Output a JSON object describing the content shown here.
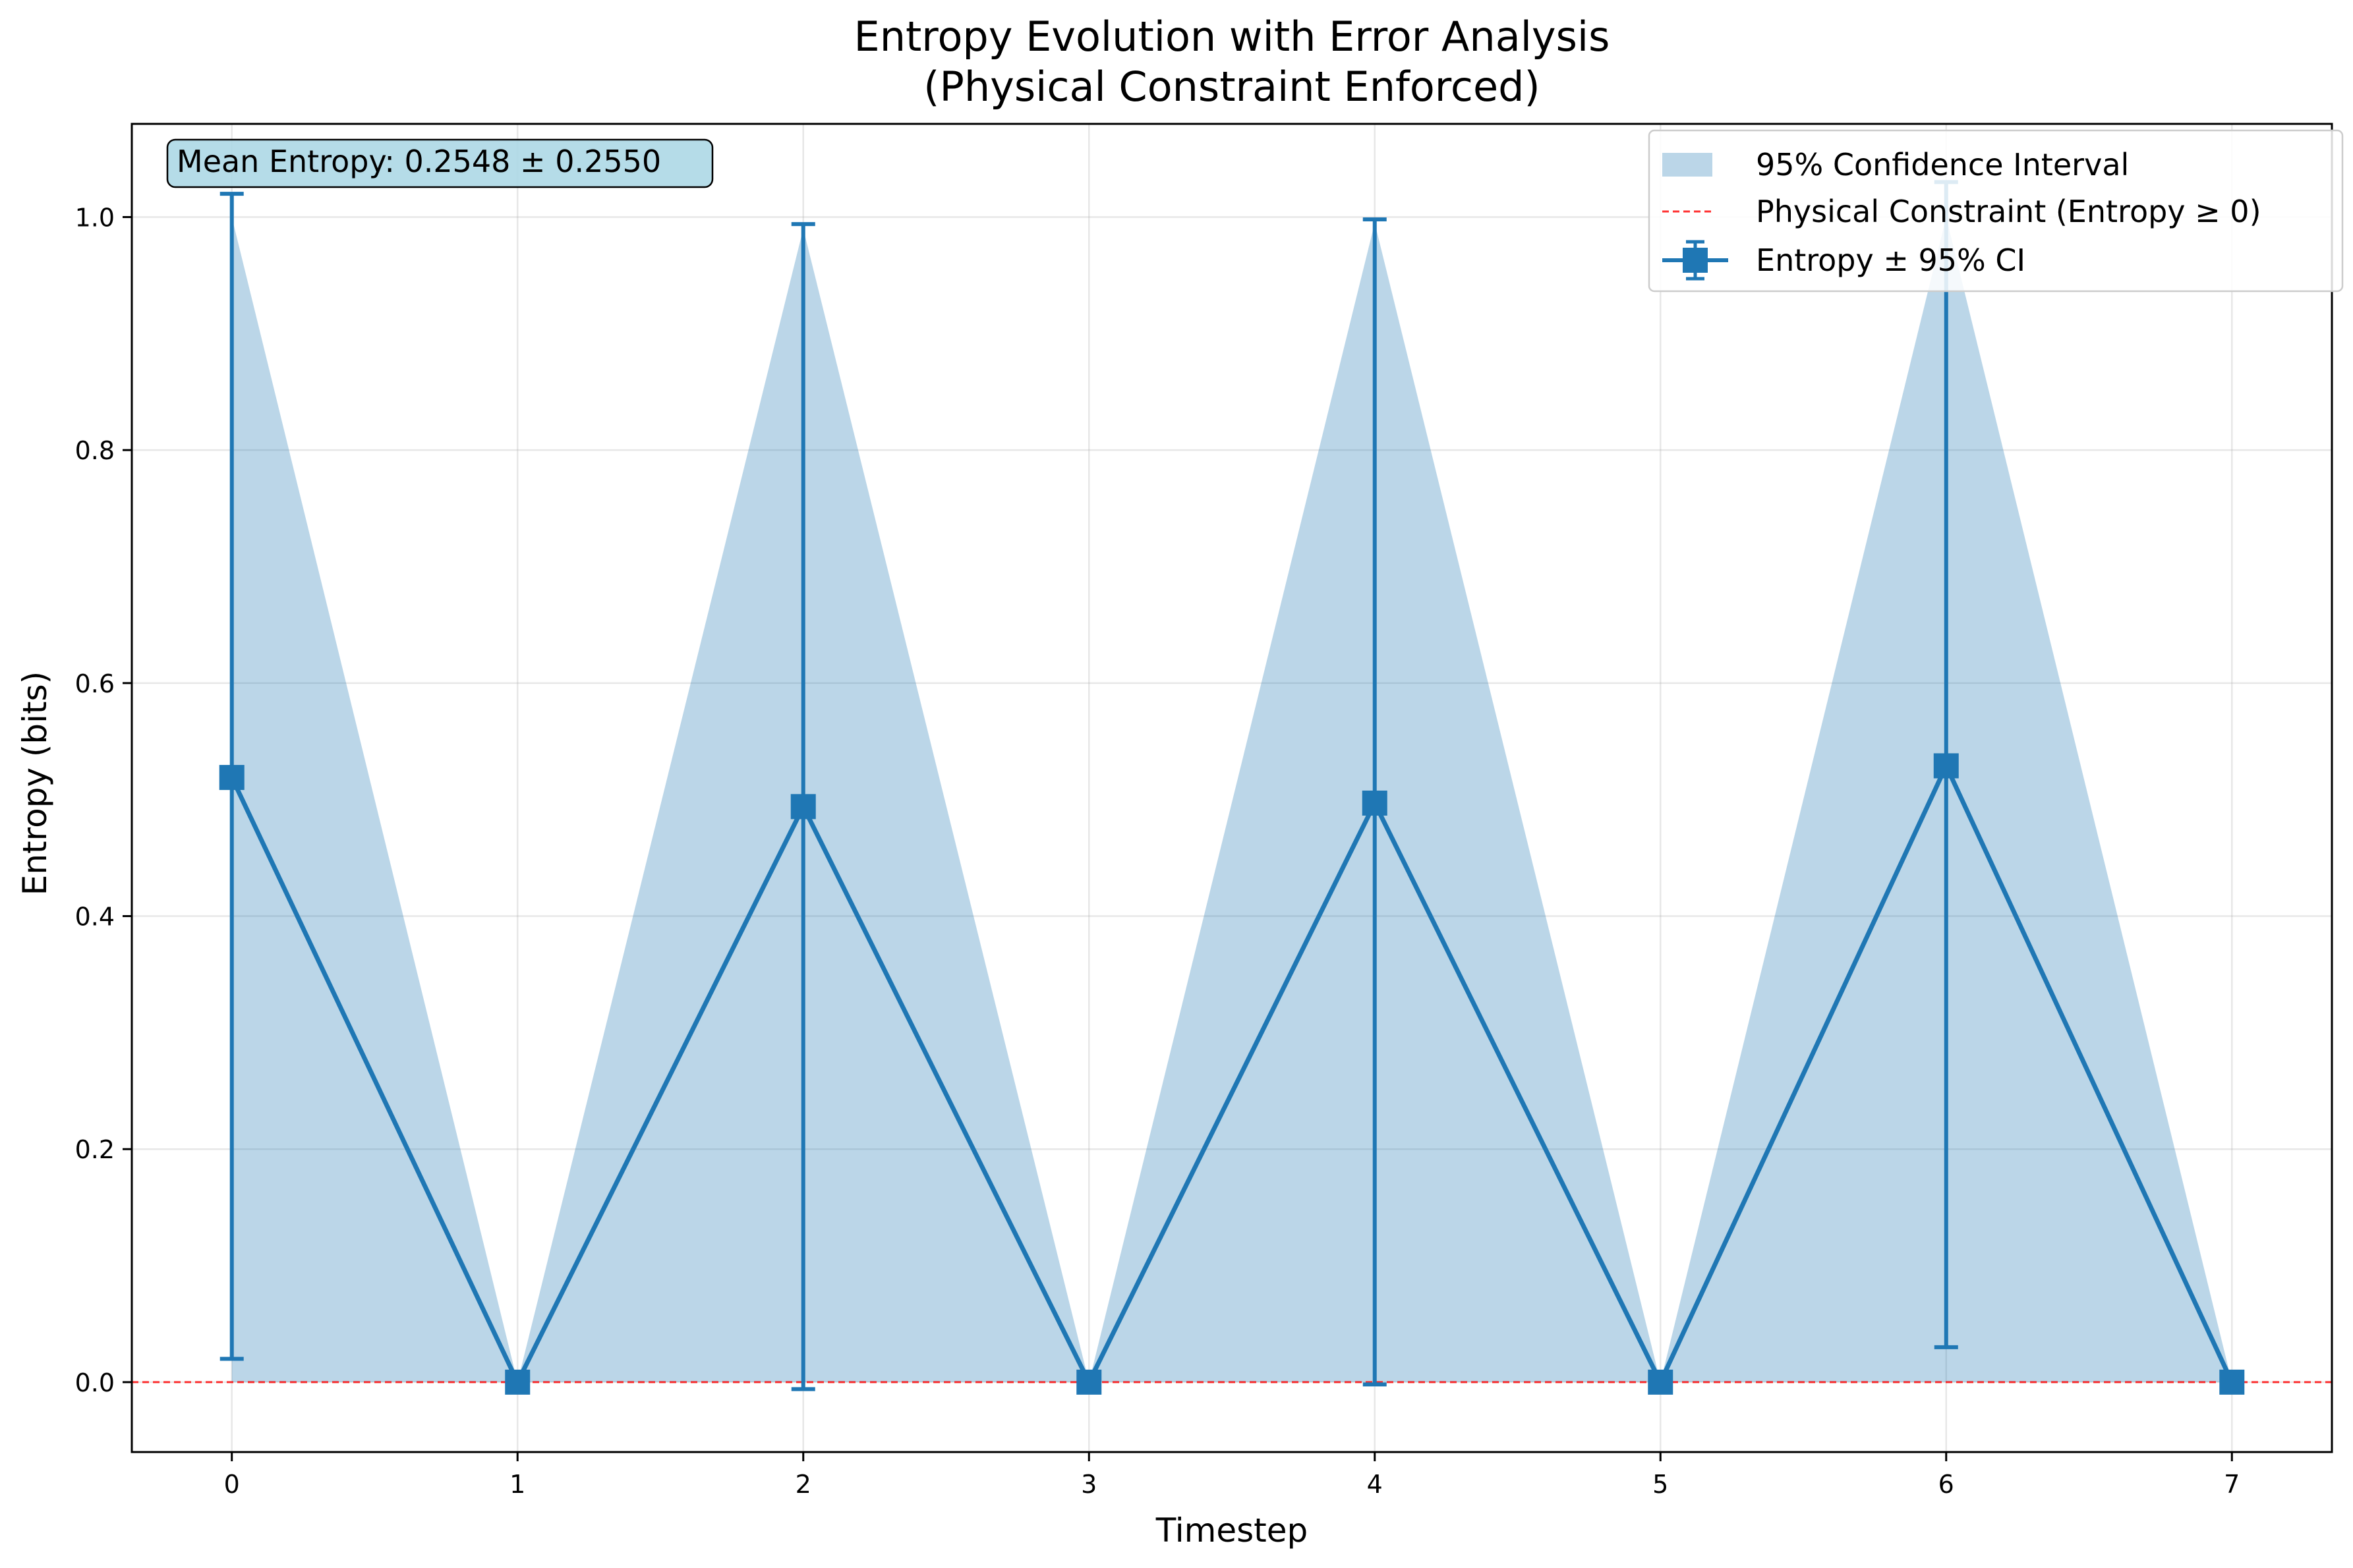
{
  "chart_data": {
    "type": "line",
    "title": "Entropy Evolution with Error Analysis",
    "subtitle": "(Physical Constraint Enforced)",
    "xlabel": "Timestep",
    "ylabel": "Entropy (bits)",
    "xlim": [
      -0.35,
      7.35
    ],
    "ylim": [
      -0.06,
      1.08
    ],
    "xticks": [
      0,
      1,
      2,
      3,
      4,
      5,
      6,
      7
    ],
    "yticks": [
      0.0,
      0.2,
      0.4,
      0.6,
      0.8,
      1.0
    ],
    "grid": true,
    "legend_position": "top-right",
    "x": [
      0,
      1,
      2,
      3,
      4,
      5,
      6,
      7
    ],
    "series": [
      {
        "name": "Entropy ± 95% CI",
        "values": [
          0.519,
          0.0,
          0.494,
          0.0,
          0.497,
          0.0,
          0.529,
          0.0
        ],
        "ci_lower": [
          0.02,
          0.0,
          -0.006,
          0.0,
          -0.002,
          0.0,
          0.03,
          0.0
        ],
        "ci_upper": [
          1.02,
          0.0,
          0.994,
          0.0,
          0.998,
          0.0,
          1.03,
          0.0
        ],
        "color": "#1f77b4",
        "marker": "square"
      }
    ],
    "band": {
      "name": "95% Confidence Interval",
      "lower": [
        0.0,
        0.0,
        0.0,
        0.0,
        0.0,
        0.0,
        0.0,
        0.0
      ],
      "upper": [
        1.0,
        0.0,
        0.99,
        0.0,
        0.995,
        0.0,
        1.0,
        0.0
      ],
      "color": "#1f77b4",
      "opacity": 0.3
    },
    "hline": {
      "name": "Physical Constraint (Entropy ≥ 0)",
      "y": 0.0,
      "color": "#ff0000",
      "style": "dashed"
    },
    "annotation": {
      "text": "Mean Entropy: 0.2548 ± 0.2550",
      "position": "top-left",
      "background": "#add8e6"
    }
  }
}
